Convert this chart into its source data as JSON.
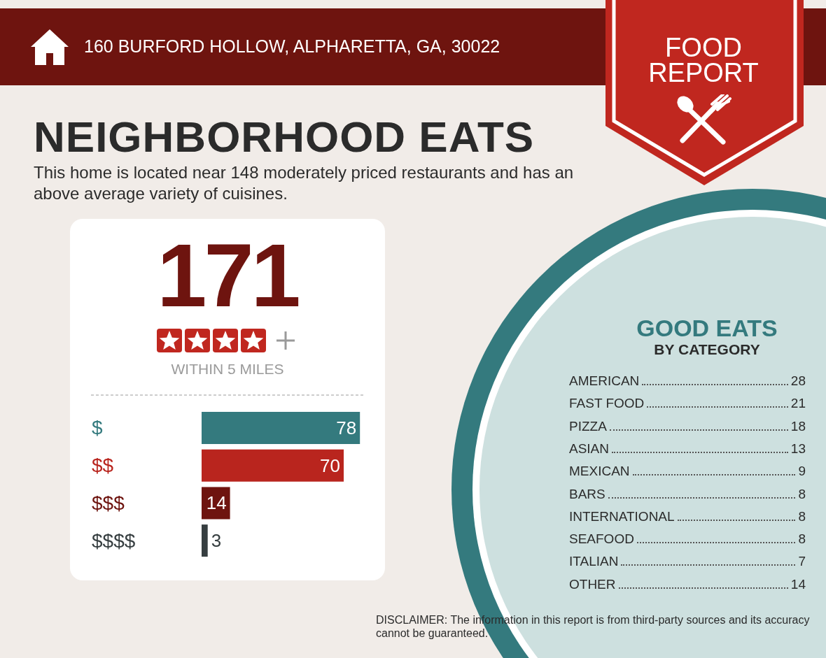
{
  "chart_data": [
    {
      "type": "other",
      "title": "NEIGHBORHOOD EATS",
      "subtitle": "This home is located near 148 moderately priced restaurants and has an above average variety of cuisines.",
      "annotations": [
        "160 BURFORD HOLLOW, ALPHARETTA, GA, 30022",
        "FOOD REPORT",
        "171",
        "WITHIN 5 MILES",
        "DISCLAIMER: The information in this report is from third-party sources and its accuracy cannot be guaranteed."
      ]
    },
    {
      "type": "bar",
      "orientation": "horizontal",
      "categories": [
        "$",
        "$$",
        "$$$",
        "$$$$"
      ],
      "values": [
        78,
        70,
        14,
        3
      ],
      "colors": [
        "#347a7e",
        "#b9251e",
        "#6e140f",
        "#363e40"
      ],
      "data_labels": true
    },
    {
      "type": "other",
      "title": "GOOD EATS",
      "subtitle": "BY CATEGORY",
      "categories": [
        "AMERICAN",
        "FAST FOOD",
        "PIZZA",
        "ASIAN",
        "MEXICAN",
        "BARS",
        "INTERNATIONAL",
        "SEAFOOD",
        "ITALIAN",
        "OTHER"
      ],
      "values": [
        28,
        21,
        18,
        13,
        9,
        8,
        8,
        8,
        7,
        14
      ],
      "data_labels": true
    }
  ]
}
